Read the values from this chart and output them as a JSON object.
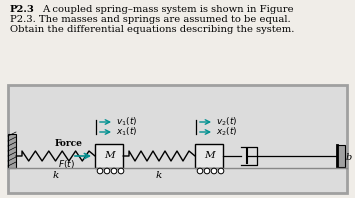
{
  "title_line1": "P2.3   A coupled spring–mass system is shown in Figure",
  "title_line2": "P2.3. The masses and springs are assumed to be equal.",
  "title_line3": "Obtain the differential equations describing the system.",
  "bg_color": "#f0ede8",
  "diagram_bg": "#dcdcdc",
  "diagram_border": "#a0a0a0",
  "wall_fill": "#a0a0a0",
  "mass_fill": "#e8e8e8",
  "ground_color": "#888888",
  "spring_color": "#000000",
  "arrow_color": "#009090",
  "force_color": "#009090",
  "text_color": "#000000",
  "label_color": "#000000",
  "wheel_fill": "#ffffff",
  "dashpot_fill": "#ffffff"
}
